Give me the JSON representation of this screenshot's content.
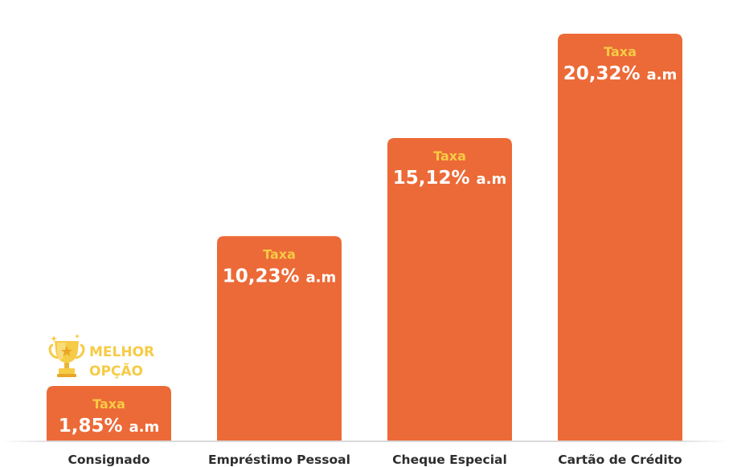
{
  "chart_data": {
    "type": "bar",
    "categories": [
      "Consignado",
      "Empréstimo Pessoal",
      "Cheque Especial",
      "Cartão de Crédito"
    ],
    "values": [
      1.85,
      10.23,
      15.12,
      20.32
    ],
    "value_labels": [
      "1,85%",
      "10,23%",
      "15,12%",
      "20,32%"
    ],
    "value_unit": "a.m",
    "bar_caption": "Taxa",
    "ylim": [
      0,
      22
    ],
    "grid": false,
    "highlight": {
      "category_index": 0,
      "icon": "trophy-icon",
      "label_line1": "MELHOR",
      "label_line2": "OPÇÃO"
    }
  },
  "colors": {
    "bar": "#EC6A37",
    "caption": "#F6CB45",
    "value_text": "#FFFFFF",
    "category_text": "#2D2D2D",
    "baseline": "#D9D9D9"
  }
}
